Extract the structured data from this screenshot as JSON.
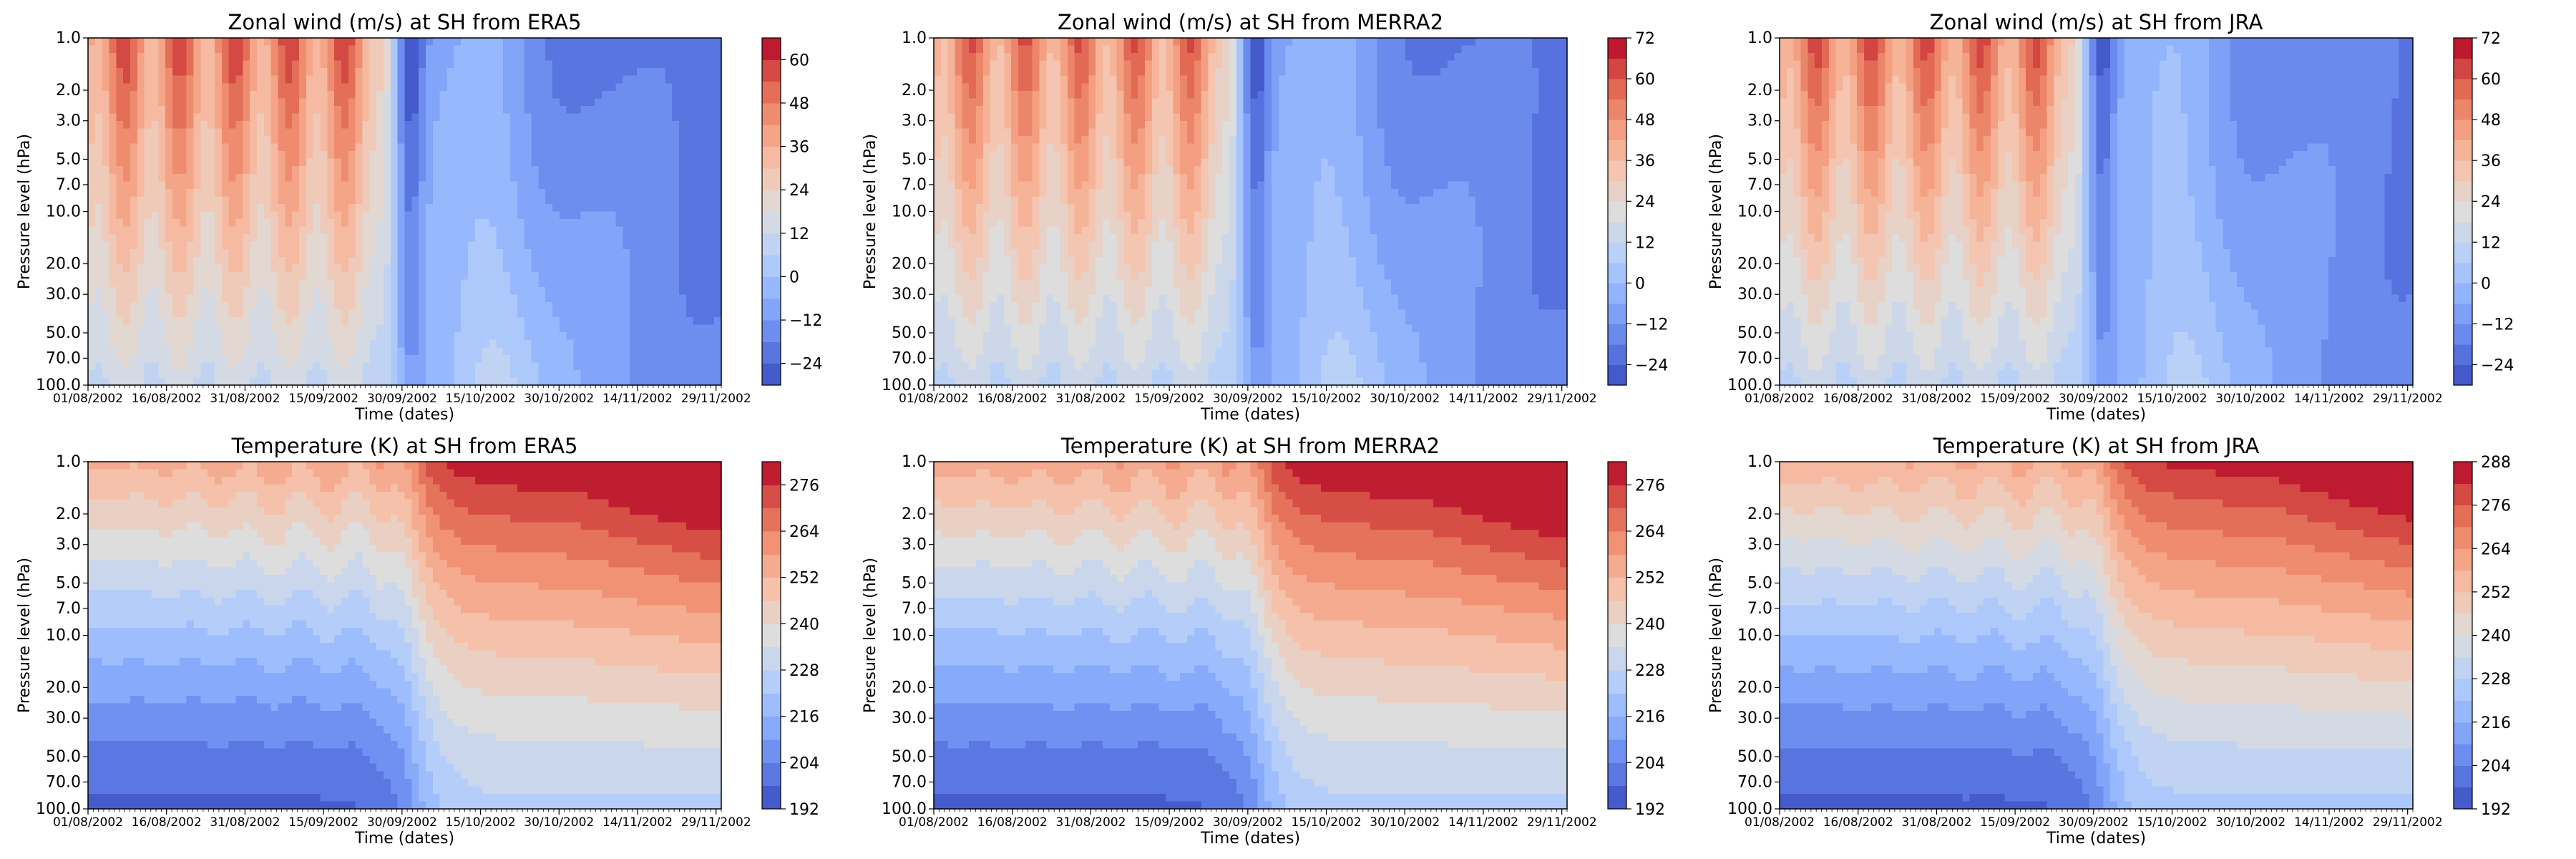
{
  "chart_data": [
    {
      "type": "heatmap",
      "variable": "u",
      "title": "Zonal wind (m/s) at SH from ERA5",
      "xlabel": "Time (dates)",
      "ylabel": "Pressure level (hPa)",
      "x_tick_labels": [
        "01/08/2002",
        "16/08/2002",
        "31/08/2002",
        "15/09/2002",
        "30/09/2002",
        "15/10/2002",
        "30/10/2002",
        "14/11/2002",
        "29/11/2002"
      ],
      "y_tick_labels": [
        "1.0",
        "2.0",
        "3.0",
        "5.0",
        "7.0",
        "10.0",
        "20.0",
        "30.0",
        "50.0",
        "70.0",
        "100.0"
      ],
      "colorbar": {
        "min": -30,
        "max": 66,
        "step": 6,
        "tick_labels": [
          "60",
          "48",
          "36",
          "24",
          "12",
          "0",
          "−12",
          "−24"
        ]
      }
    },
    {
      "type": "heatmap",
      "variable": "u",
      "title": "Zonal wind (m/s) at SH from MERRA2",
      "xlabel": "Time (dates)",
      "ylabel": "Pressure level (hPa)",
      "x_tick_labels": [
        "01/08/2002",
        "16/08/2002",
        "31/08/2002",
        "15/09/2002",
        "30/09/2002",
        "15/10/2002",
        "30/10/2002",
        "14/11/2002",
        "29/11/2002"
      ],
      "y_tick_labels": [
        "1.0",
        "2.0",
        "3.0",
        "5.0",
        "7.0",
        "10.0",
        "20.0",
        "30.0",
        "50.0",
        "70.0",
        "100.0"
      ],
      "colorbar": {
        "min": -30,
        "max": 72,
        "step": 6,
        "tick_labels": [
          "72",
          "60",
          "48",
          "36",
          "24",
          "12",
          "0",
          "−12",
          "−24"
        ]
      }
    },
    {
      "type": "heatmap",
      "variable": "u",
      "title": "Zonal wind (m/s) at SH from JRA",
      "xlabel": "Time (dates)",
      "ylabel": "Pressure level (hPa)",
      "x_tick_labels": [
        "01/08/2002",
        "16/08/2002",
        "31/08/2002",
        "15/09/2002",
        "30/09/2002",
        "15/10/2002",
        "30/10/2002",
        "14/11/2002",
        "29/11/2002"
      ],
      "y_tick_labels": [
        "1.0",
        "2.0",
        "3.0",
        "5.0",
        "7.0",
        "10.0",
        "20.0",
        "30.0",
        "50.0",
        "70.0",
        "100.0"
      ],
      "colorbar": {
        "min": -30,
        "max": 72,
        "step": 6,
        "tick_labels": [
          "72",
          "60",
          "48",
          "36",
          "24",
          "12",
          "0",
          "−12",
          "−24"
        ]
      }
    },
    {
      "type": "heatmap",
      "variable": "t",
      "title": "Temperature (K) at SH from ERA5",
      "xlabel": "Time (dates)",
      "ylabel": "Pressure level (hPa)",
      "x_tick_labels": [
        "01/08/2002",
        "16/08/2002",
        "31/08/2002",
        "15/09/2002",
        "30/09/2002",
        "15/10/2002",
        "30/10/2002",
        "14/11/2002",
        "29/11/2002"
      ],
      "y_tick_labels": [
        "1.0",
        "2.0",
        "3.0",
        "5.0",
        "7.0",
        "10.0",
        "20.0",
        "30.0",
        "50.0",
        "70.0",
        "100.0"
      ],
      "colorbar": {
        "min": 192,
        "max": 282,
        "step": 6,
        "tick_labels": [
          "276",
          "264",
          "252",
          "240",
          "228",
          "216",
          "204",
          "192"
        ]
      }
    },
    {
      "type": "heatmap",
      "variable": "t",
      "title": "Temperature (K) at SH from MERRA2",
      "xlabel": "Time (dates)",
      "ylabel": "Pressure level (hPa)",
      "x_tick_labels": [
        "01/08/2002",
        "16/08/2002",
        "31/08/2002",
        "15/09/2002",
        "30/09/2002",
        "15/10/2002",
        "30/10/2002",
        "14/11/2002",
        "29/11/2002"
      ],
      "y_tick_labels": [
        "1.0",
        "2.0",
        "3.0",
        "5.0",
        "7.0",
        "10.0",
        "20.0",
        "30.0",
        "50.0",
        "70.0",
        "100.0"
      ],
      "colorbar": {
        "min": 192,
        "max": 282,
        "step": 6,
        "tick_labels": [
          "276",
          "264",
          "252",
          "240",
          "228",
          "216",
          "204",
          "192"
        ]
      }
    },
    {
      "type": "heatmap",
      "variable": "t",
      "title": "Temperature (K) at SH from JRA",
      "xlabel": "Time (dates)",
      "ylabel": "Pressure level (hPa)",
      "x_tick_labels": [
        "01/08/2002",
        "16/08/2002",
        "31/08/2002",
        "15/09/2002",
        "30/09/2002",
        "15/10/2002",
        "30/10/2002",
        "14/11/2002",
        "29/11/2002"
      ],
      "y_tick_labels": [
        "1.0",
        "2.0",
        "3.0",
        "5.0",
        "7.0",
        "10.0",
        "20.0",
        "30.0",
        "50.0",
        "70.0",
        "100.0"
      ],
      "colorbar": {
        "min": 192,
        "max": 288,
        "step": 6,
        "tick_labels": [
          "288",
          "276",
          "264",
          "252",
          "240",
          "228",
          "216",
          "204",
          "192"
        ]
      }
    }
  ]
}
